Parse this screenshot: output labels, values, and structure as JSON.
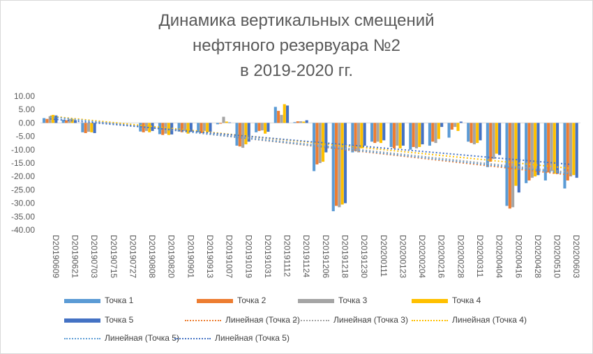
{
  "chart_data": {
    "type": "bar",
    "title_lines": [
      "Динамика вертикальных смещений",
      "нефтяного резервуара №2",
      "в 2019-2020 гг."
    ],
    "xlabel": "",
    "ylabel": "",
    "ylim": [
      -40,
      10
    ],
    "yticks": [
      "10.00",
      "5.00",
      "0.00",
      "-5.00",
      "-10.00",
      "-15.00",
      "-20.00",
      "-25.00",
      "-30.00",
      "-35.00",
      "-40.00"
    ],
    "ytick_values": [
      10,
      5,
      0,
      -5,
      -10,
      -15,
      -20,
      -25,
      -30,
      -35,
      -40
    ],
    "categories": [
      "D20190609",
      "D20190621",
      "D20190703",
      "D20190715",
      "D20190727",
      "D20190808",
      "D20190820",
      "D20190901",
      "D20190913",
      "D20191007",
      "D20191019",
      "D20191031",
      "D20191112",
      "D20191124",
      "D20191206",
      "D20191218",
      "D20191230",
      "D20200111",
      "D20200123",
      "D20200204",
      "D20200216",
      "D20200228",
      "D20200311",
      "D20200404",
      "D20200416",
      "D20200428",
      "D20200510",
      "D20200603"
    ],
    "series": [
      {
        "name": "Точка 1",
        "color": "#5b9bd5",
        "values": [
          1.8,
          1.2,
          -3.5,
          null,
          null,
          -3.2,
          -4.2,
          -3.2,
          -3.5,
          -0.5,
          -8.5,
          -3.5,
          6.0,
          0.3,
          -18.0,
          -33.0,
          -11.0,
          -7.0,
          -9.0,
          -10.0,
          -8.5,
          -5.5,
          -7.0,
          -16.5,
          -31.0,
          -22.5,
          -21.5,
          -24.5
        ]
      },
      {
        "name": "Точка 2",
        "color": "#ed7d31",
        "values": [
          1.5,
          1.0,
          -3.8,
          null,
          null,
          -3.5,
          -4.5,
          -3.5,
          -3.8,
          -0.3,
          -8.8,
          -3.0,
          4.5,
          0.6,
          -15.5,
          -31.0,
          -10.5,
          -7.5,
          -9.5,
          -9.0,
          -7.0,
          -2.5,
          -7.5,
          -14.5,
          -32.0,
          -21.5,
          -18.5,
          -21.5
        ]
      },
      {
        "name": "Точка 3",
        "color": "#a5a5a5",
        "values": [
          2.5,
          1.5,
          -3.3,
          null,
          null,
          -3.0,
          -4.0,
          -3.0,
          -3.0,
          2.3,
          -9.3,
          -2.8,
          3.0,
          0.6,
          -15.0,
          -31.5,
          -11.0,
          -7.0,
          -8.5,
          -9.5,
          -7.5,
          -1.5,
          -8.0,
          -13.5,
          -31.5,
          -20.5,
          -18.0,
          -20.0
        ]
      },
      {
        "name": "Точка 4",
        "color": "#ffc000",
        "values": [
          3.0,
          1.5,
          -3.5,
          null,
          null,
          -3.5,
          -4.5,
          -4.0,
          -3.5,
          0.5,
          -8.0,
          -4.0,
          7.0,
          0.5,
          -14.5,
          -30.5,
          -9.5,
          -7.5,
          -9.5,
          -9.0,
          -6.0,
          -3.0,
          -7.5,
          -11.5,
          -23.5,
          -20.0,
          -19.0,
          -19.5
        ]
      },
      {
        "name": "Точка 5",
        "color": "#4472c4",
        "values": [
          2.8,
          1.0,
          -3.8,
          null,
          null,
          -3.0,
          -4.3,
          -3.3,
          -3.3,
          0.2,
          -7.0,
          -3.3,
          6.5,
          1.0,
          -11.0,
          -30.0,
          -8.5,
          -6.5,
          -8.5,
          -8.0,
          -1.5,
          0.5,
          -6.5,
          -12.0,
          -26.0,
          -19.5,
          -19.0,
          -20.5
        ]
      }
    ],
    "trendlines": [
      {
        "name": "Линейная (Точка 2)",
        "color": "#ed7d31",
        "start": 2.5,
        "end": -19.5
      },
      {
        "name": "Линейная (Точка 3)",
        "color": "#a5a5a5",
        "start": 2.5,
        "end": -18.5
      },
      {
        "name": "Линейная (Точка 4)",
        "color": "#ffc000",
        "start": 2.5,
        "end": -17.0
      },
      {
        "name": "Линейная (Точка 5)",
        "color": "#5b9bd5",
        "start": 2.3,
        "end": -19.0
      },
      {
        "name": "Линейная (Точка 5)",
        "color": "#4472c4",
        "start": 1.5,
        "end": -15.5
      }
    ],
    "legend_position": "bottom",
    "grid": false
  }
}
